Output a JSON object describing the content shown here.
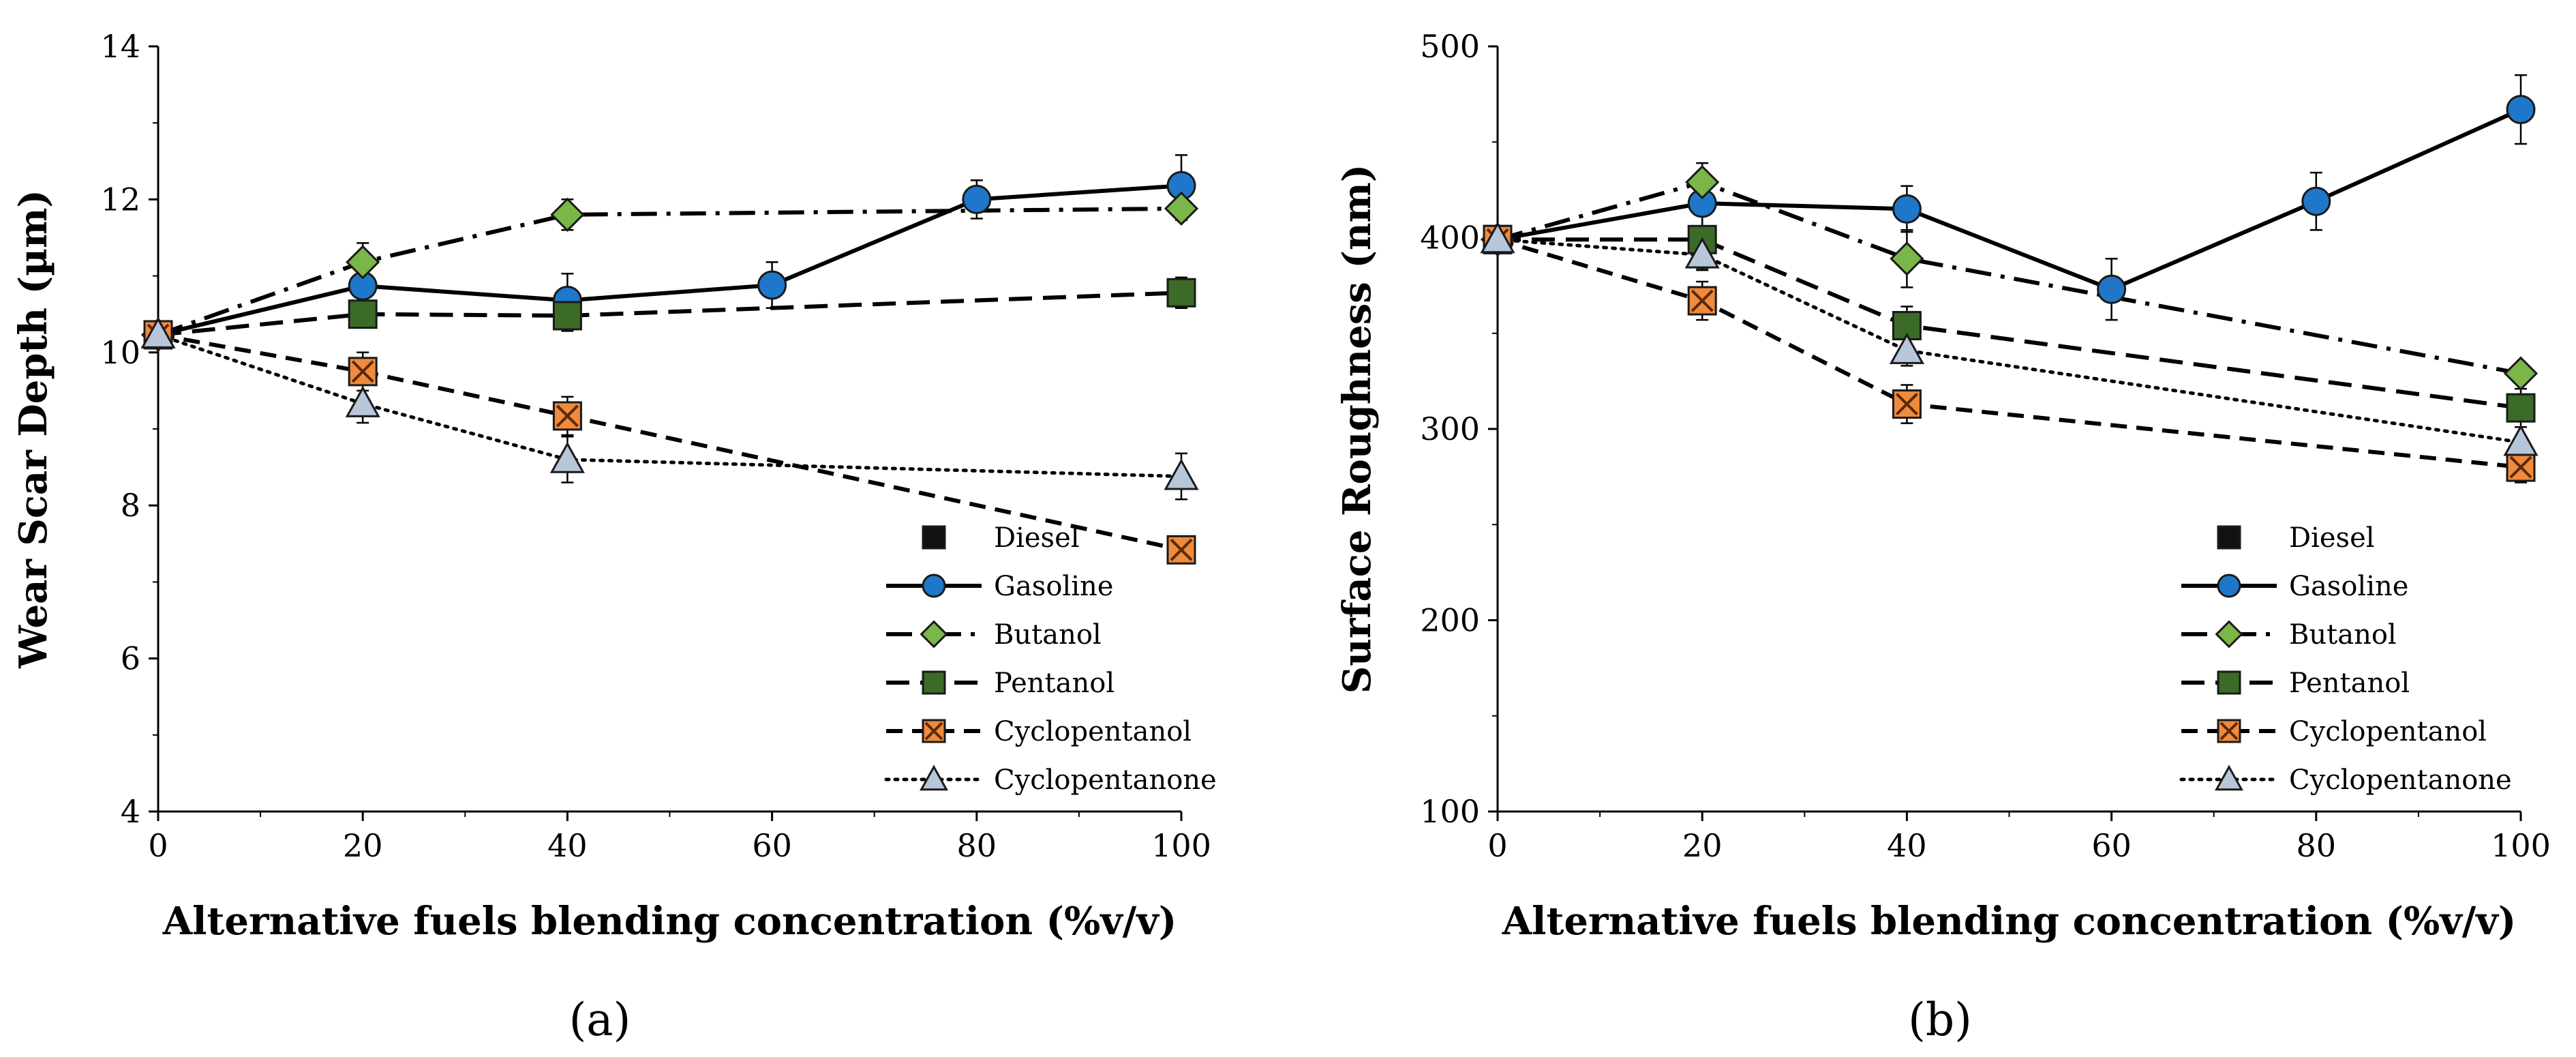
{
  "chart_data": [
    {
      "type": "line",
      "panel_label": "(a)",
      "xlabel": "Alternative fuels blending concentration (%v/v)",
      "ylabel": "Wear Scar Depth (µm)",
      "xlim": [
        0,
        100
      ],
      "ylim": [
        4,
        14
      ],
      "xticks": [
        0,
        20,
        40,
        60,
        80,
        100
      ],
      "yticks": [
        4,
        6,
        8,
        10,
        12,
        14
      ],
      "legend_position": "bottom-right",
      "series": [
        {
          "name": "Diesel",
          "marker": "square",
          "color": "#111111",
          "line": "none",
          "x": [
            0
          ],
          "y": [
            10.23
          ],
          "err": [
            0
          ]
        },
        {
          "name": "Gasoline",
          "marker": "circle",
          "color": "#1f77c9",
          "line": "solid",
          "x": [
            0,
            20,
            40,
            60,
            80,
            100
          ],
          "y": [
            10.23,
            10.87,
            10.68,
            10.88,
            12.0,
            12.18
          ],
          "err": [
            0,
            0,
            0.35,
            0.3,
            0.25,
            0.4
          ]
        },
        {
          "name": "Butanol",
          "marker": "diamond",
          "color": "#7ab648",
          "line": "dashdot",
          "x": [
            0,
            20,
            40,
            100
          ],
          "y": [
            10.23,
            11.18,
            11.8,
            11.88
          ],
          "err": [
            0,
            0.25,
            0.2,
            0.15
          ]
        },
        {
          "name": "Pentanol",
          "marker": "square",
          "color": "#3b6b26",
          "line": "longdash",
          "x": [
            0,
            20,
            40,
            100
          ],
          "y": [
            10.23,
            10.5,
            10.48,
            10.78
          ],
          "err": [
            0,
            0,
            0.2,
            0.2
          ]
        },
        {
          "name": "Cyclopentanol",
          "marker": "xsquare",
          "color": "#f08a3c",
          "line": "dashed",
          "x": [
            0,
            20,
            40,
            100
          ],
          "y": [
            10.23,
            9.75,
            9.17,
            7.42
          ],
          "err": [
            0,
            0.25,
            0.25,
            0
          ]
        },
        {
          "name": "Cyclopentanone",
          "marker": "triangle",
          "color": "#b8c6da",
          "line": "dotted",
          "x": [
            0,
            20,
            40,
            100
          ],
          "y": [
            10.23,
            9.33,
            8.6,
            8.38
          ],
          "err": [
            0,
            0.25,
            0.3,
            0.3
          ]
        }
      ]
    },
    {
      "type": "line",
      "panel_label": "(b)",
      "xlabel": "Alternative fuels blending concentration (%v/v)",
      "ylabel": "Surface Roughness (nm)",
      "xlim": [
        0,
        100
      ],
      "ylim": [
        100,
        500
      ],
      "xticks": [
        0,
        20,
        40,
        60,
        80,
        100
      ],
      "yticks": [
        100,
        200,
        300,
        400,
        500
      ],
      "legend_position": "bottom-right",
      "series": [
        {
          "name": "Diesel",
          "marker": "square",
          "color": "#111111",
          "line": "none",
          "x": [
            0
          ],
          "y": [
            399
          ],
          "err": [
            0
          ]
        },
        {
          "name": "Gasoline",
          "marker": "circle",
          "color": "#1f77c9",
          "line": "solid",
          "x": [
            0,
            20,
            40,
            60,
            80,
            100
          ],
          "y": [
            399,
            418,
            415,
            373,
            419,
            467
          ],
          "err": [
            0,
            12,
            12,
            16,
            15,
            18
          ]
        },
        {
          "name": "Butanol",
          "marker": "diamond",
          "color": "#7ab648",
          "line": "dashdot",
          "x": [
            0,
            20,
            40,
            100
          ],
          "y": [
            399,
            429,
            389,
            329
          ],
          "err": [
            0,
            10,
            15,
            0
          ]
        },
        {
          "name": "Pentanol",
          "marker": "square",
          "color": "#3b6b26",
          "line": "longdash",
          "x": [
            0,
            20,
            40,
            100
          ],
          "y": [
            399,
            399,
            354,
            311
          ],
          "err": [
            0,
            15,
            10,
            10
          ]
        },
        {
          "name": "Cyclopentanol",
          "marker": "xsquare",
          "color": "#f08a3c",
          "line": "dashed",
          "x": [
            0,
            20,
            40,
            100
          ],
          "y": [
            399,
            367,
            313,
            280
          ],
          "err": [
            0,
            10,
            10,
            8
          ]
        },
        {
          "name": "Cyclopentanone",
          "marker": "triangle",
          "color": "#b8c6da",
          "line": "dotted",
          "x": [
            0,
            20,
            40,
            100
          ],
          "y": [
            399,
            391,
            341,
            293
          ],
          "err": [
            0,
            8,
            8,
            8
          ]
        }
      ]
    }
  ]
}
